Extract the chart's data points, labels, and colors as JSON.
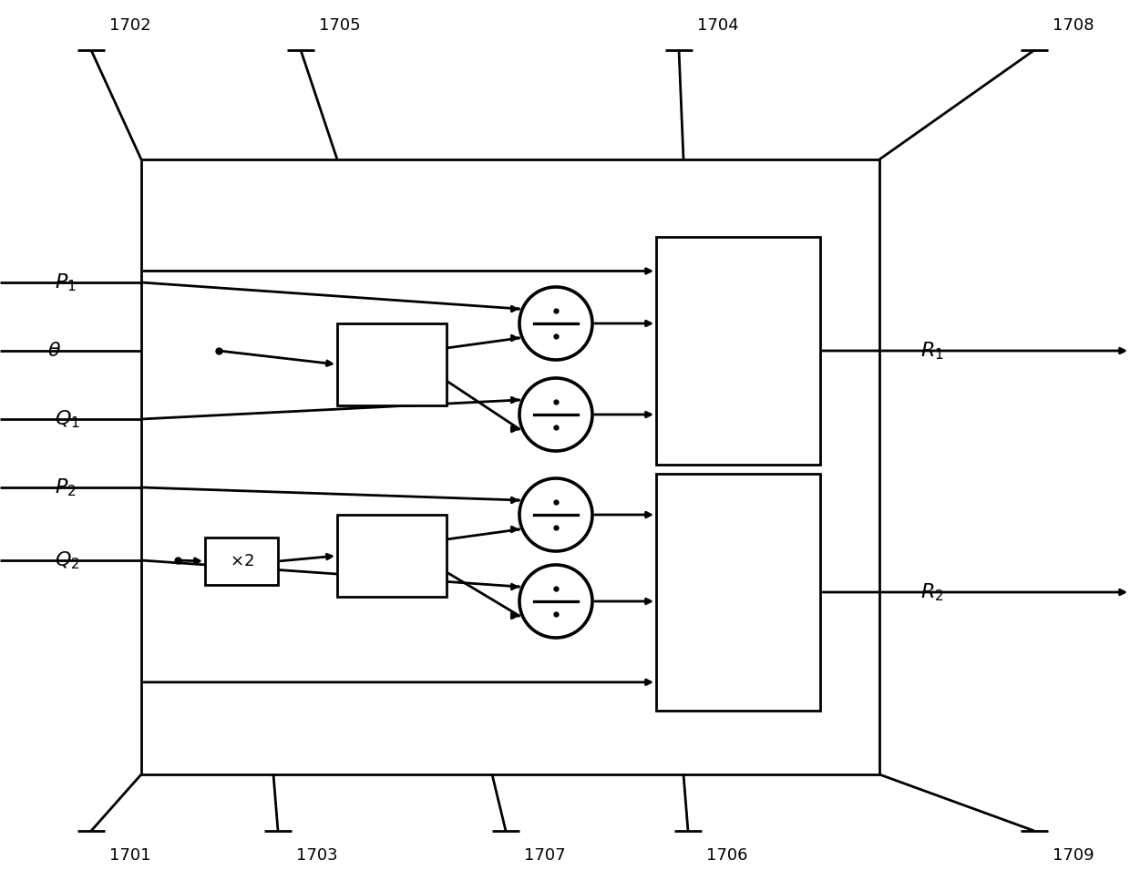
{
  "bg_color": "#ffffff",
  "lc": "#000000",
  "lw": 2.0,
  "fig_w": 12.4,
  "fig_h": 9.67,
  "dpi": 100
}
